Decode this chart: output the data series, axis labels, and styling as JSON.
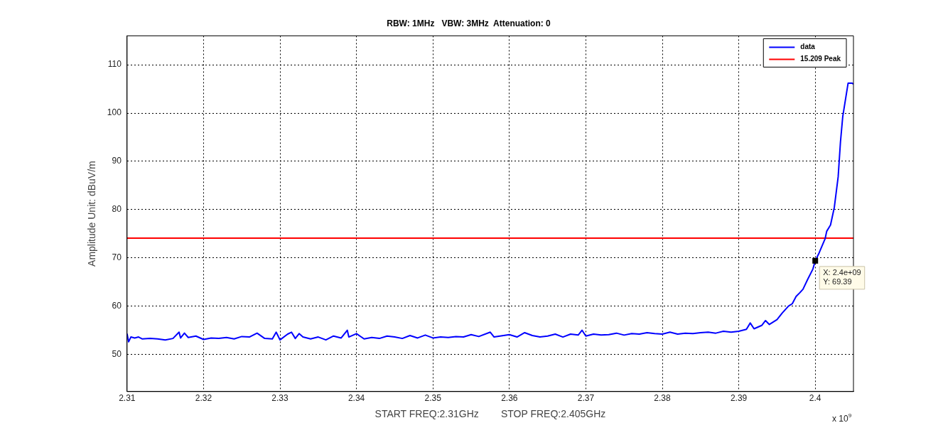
{
  "chart_data": {
    "type": "line",
    "title": "RBW: 1MHz   VBW: 3MHz  Attenuation: 0",
    "xlabel": "START FREQ:2.31GHz        STOP FREQ:2.405GHz",
    "ylabel": "Amplitude Unit: dBuV/m",
    "xlim": [
      2.31,
      2.405
    ],
    "xticks": [
      2.31,
      2.32,
      2.33,
      2.34,
      2.35,
      2.36,
      2.37,
      2.38,
      2.39,
      2.4
    ],
    "ylim": [
      42.3,
      116
    ],
    "yticks": [
      50,
      60,
      70,
      80,
      90,
      100,
      110
    ],
    "grid": true,
    "legend": "top right",
    "marker": "none",
    "line_style": "solid",
    "x": [
      2.31,
      2.3102,
      2.3105,
      2.311,
      2.3115,
      2.312,
      2.313,
      2.314,
      2.315,
      2.316,
      2.3168,
      2.317,
      2.3175,
      2.318,
      2.319,
      2.32,
      2.321,
      2.322,
      2.323,
      2.324,
      2.325,
      2.326,
      2.327,
      2.328,
      2.329,
      2.3295,
      2.33,
      2.331,
      2.3315,
      2.332,
      2.3325,
      2.333,
      2.334,
      2.335,
      2.336,
      2.337,
      2.338,
      2.3388,
      2.339,
      2.34,
      2.341,
      2.342,
      2.343,
      2.344,
      2.345,
      2.346,
      2.347,
      2.348,
      2.349,
      2.35,
      2.351,
      2.352,
      2.353,
      2.354,
      2.355,
      2.356,
      2.3575,
      2.358,
      2.36,
      2.361,
      2.362,
      2.363,
      2.364,
      2.365,
      2.366,
      2.367,
      2.368,
      2.369,
      2.3695,
      2.37,
      2.371,
      2.372,
      2.373,
      2.374,
      2.375,
      2.376,
      2.377,
      2.378,
      2.379,
      2.38,
      2.381,
      2.382,
      2.383,
      2.384,
      2.385,
      2.386,
      2.387,
      2.388,
      2.389,
      2.39,
      2.391,
      2.3915,
      2.392,
      2.393,
      2.3935,
      2.394,
      2.395,
      2.3957,
      2.3965,
      2.397,
      2.3975,
      2.398,
      2.3984,
      2.399,
      2.3997,
      2.4,
      2.4005,
      2.4013,
      2.4015,
      2.402,
      2.4025,
      2.403,
      2.4033,
      2.4036,
      2.4043,
      2.4048,
      2.405
    ],
    "series": [
      {
        "name": "data",
        "color": "#0000ff",
        "values": [
          54.3,
          52.6,
          53.6,
          53.4,
          53.6,
          53.2,
          53.3,
          53.2,
          53.0,
          53.3,
          54.6,
          53.4,
          54.4,
          53.5,
          53.8,
          53.1,
          53.4,
          53.3,
          53.5,
          53.2,
          53.7,
          53.6,
          54.4,
          53.3,
          53.2,
          54.6,
          53.0,
          54.2,
          54.6,
          53.3,
          54.3,
          53.6,
          53.2,
          53.6,
          53.0,
          53.8,
          53.4,
          55.0,
          53.6,
          54.3,
          53.2,
          53.5,
          53.3,
          53.8,
          53.6,
          53.3,
          53.9,
          53.4,
          54.0,
          53.4,
          53.6,
          53.5,
          53.7,
          53.6,
          54.1,
          53.7,
          54.6,
          53.6,
          54.1,
          53.6,
          54.5,
          53.9,
          53.6,
          53.8,
          54.2,
          53.6,
          54.2,
          54.0,
          55.0,
          53.8,
          54.2,
          54.0,
          54.1,
          54.4,
          54.0,
          54.3,
          54.2,
          54.5,
          54.3,
          54.2,
          54.6,
          54.2,
          54.4,
          54.3,
          54.5,
          54.6,
          54.4,
          54.8,
          54.6,
          54.8,
          55.2,
          56.5,
          55.3,
          56.0,
          57.0,
          56.2,
          57.2,
          58.6,
          60.0,
          60.5,
          62.0,
          62.8,
          63.5,
          65.5,
          67.7,
          69.39,
          71.0,
          74.0,
          75.5,
          76.8,
          80.5,
          86.8,
          94.0,
          99.3,
          106.2,
          106.2,
          106.0
        ]
      },
      {
        "name": "15.209 Peak",
        "color": "#ff0000",
        "x": [
          2.31,
          2.405
        ],
        "values": [
          74.1,
          74.1
        ]
      }
    ],
    "annotations": [
      {
        "text": "X: 2.4e+09\nY: 69.39",
        "x": 2.4,
        "y": 69.39
      },
      "x 10$^{9}$"
    ]
  }
}
